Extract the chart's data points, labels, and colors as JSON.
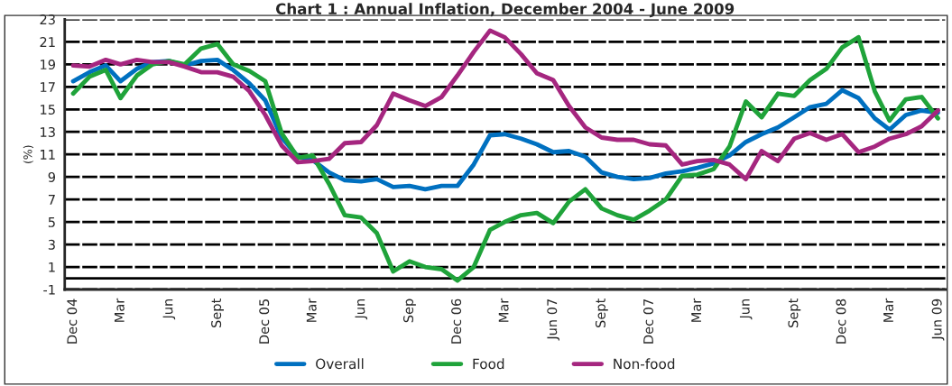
{
  "chart_data": {
    "type": "line",
    "title": "Chart 1 : Annual Inflation, December 2004 - June 2009",
    "ylabel": "(%)",
    "x": [
      "2004-12",
      "2005-01",
      "2005-02",
      "2005-03",
      "2005-04",
      "2005-05",
      "2005-06",
      "2005-07",
      "2005-08",
      "2005-09",
      "2005-10",
      "2005-11",
      "2005-12",
      "2006-01",
      "2006-02",
      "2006-03",
      "2006-04",
      "2006-05",
      "2006-06",
      "2006-07",
      "2006-08",
      "2006-09",
      "2006-10",
      "2006-11",
      "2006-12",
      "2007-01",
      "2007-02",
      "2007-03",
      "2007-04",
      "2007-05",
      "2007-06",
      "2007-07",
      "2007-08",
      "2007-09",
      "2007-10",
      "2007-11",
      "2007-12",
      "2008-01",
      "2008-02",
      "2008-03",
      "2008-04",
      "2008-05",
      "2008-06",
      "2008-07",
      "2008-08",
      "2008-09",
      "2008-10",
      "2008-11",
      "2008-12",
      "2009-01",
      "2009-02",
      "2009-03",
      "2009-04",
      "2009-05",
      "2009-06"
    ],
    "series": [
      {
        "name": "Overall",
        "color": "#0070c0",
        "values": [
          17.5,
          18.3,
          18.9,
          17.5,
          18.6,
          19.2,
          19.3,
          18.9,
          19.3,
          19.4,
          18.5,
          17.3,
          15.8,
          12.5,
          10.8,
          10.5,
          9.4,
          8.7,
          8.6,
          8.8,
          8.1,
          8.2,
          7.9,
          8.2,
          8.2,
          10.1,
          12.7,
          12.8,
          12.4,
          11.9,
          11.2,
          11.3,
          10.8,
          9.4,
          9.0,
          8.8,
          8.9,
          9.3,
          9.5,
          9.8,
          10.2,
          10.9,
          12.1,
          12.8,
          13.4,
          14.3,
          15.2,
          15.5,
          16.7,
          16.0,
          14.2,
          13.2,
          14.5,
          14.9,
          14.7
        ]
      },
      {
        "name": "Food",
        "color": "#1fa33a",
        "values": [
          16.4,
          17.9,
          18.5,
          16.0,
          18.0,
          19.0,
          19.3,
          19.0,
          20.4,
          20.8,
          19.0,
          18.4,
          17.5,
          12.9,
          10.7,
          10.9,
          8.4,
          5.6,
          5.4,
          4.0,
          0.6,
          1.5,
          1.0,
          0.8,
          -0.2,
          1.0,
          4.3,
          5.0,
          5.6,
          5.8,
          4.9,
          6.8,
          7.9,
          6.2,
          5.6,
          5.2,
          6.0,
          7.0,
          9.1,
          9.2,
          9.7,
          11.7,
          15.7,
          14.3,
          16.4,
          16.2,
          17.6,
          18.6,
          20.5,
          21.4,
          16.6,
          14.0,
          15.9,
          16.1,
          14.2
        ]
      },
      {
        "name": "Non-food",
        "color": "#a5267f",
        "values": [
          18.9,
          18.8,
          19.4,
          19.0,
          19.4,
          19.2,
          19.2,
          18.8,
          18.3,
          18.3,
          17.9,
          16.6,
          14.5,
          11.8,
          10.3,
          10.4,
          10.6,
          12.0,
          12.1,
          13.6,
          16.4,
          15.8,
          15.3,
          16.1,
          18.0,
          20.1,
          22.0,
          21.4,
          19.9,
          18.2,
          17.6,
          15.3,
          13.4,
          12.5,
          12.3,
          12.3,
          11.9,
          11.8,
          10.1,
          10.4,
          10.5,
          10.1,
          8.8,
          11.3,
          10.4,
          12.4,
          12.9,
          12.3,
          12.8,
          11.2,
          11.7,
          12.4,
          12.8,
          13.5,
          14.9
        ]
      }
    ],
    "xlim": [
      "2004-11-15",
      "2009-06-15"
    ],
    "xticks": [
      {
        "value": "2004-12",
        "label": "Dec 04"
      },
      {
        "value": "2005-03",
        "label": "Mar"
      },
      {
        "value": "2005-06",
        "label": "Jun"
      },
      {
        "value": "2005-09",
        "label": "Sept"
      },
      {
        "value": "2005-12",
        "label": "Dec 05"
      },
      {
        "value": "2006-03",
        "label": "Mar"
      },
      {
        "value": "2006-06",
        "label": "Jun"
      },
      {
        "value": "2006-09",
        "label": "Sep"
      },
      {
        "value": "2006-12",
        "label": "Dec 06"
      },
      {
        "value": "2007-03",
        "label": "Mar"
      },
      {
        "value": "2007-06",
        "label": "Jun 07"
      },
      {
        "value": "2007-09",
        "label": "Sept"
      },
      {
        "value": "2007-12",
        "label": "Dec 07"
      },
      {
        "value": "2008-03",
        "label": "Mar"
      },
      {
        "value": "2008-06",
        "label": "Jun"
      },
      {
        "value": "2008-09",
        "label": "Sept"
      },
      {
        "value": "2008-12",
        "label": "Dec 08"
      },
      {
        "value": "2009-03",
        "label": "Mar"
      },
      {
        "value": "2009-06",
        "label": "Jun 09"
      }
    ],
    "ylim": [
      -1,
      23
    ],
    "yticks": [
      -1,
      1,
      3,
      5,
      7,
      9,
      11,
      13,
      15,
      17,
      19,
      21,
      23
    ],
    "ref_lines": [
      {
        "axis": "y",
        "value": 0,
        "color": "#000000"
      }
    ],
    "grid": "y",
    "legend": "bottom",
    "marker": "none",
    "line_style": "solid"
  }
}
